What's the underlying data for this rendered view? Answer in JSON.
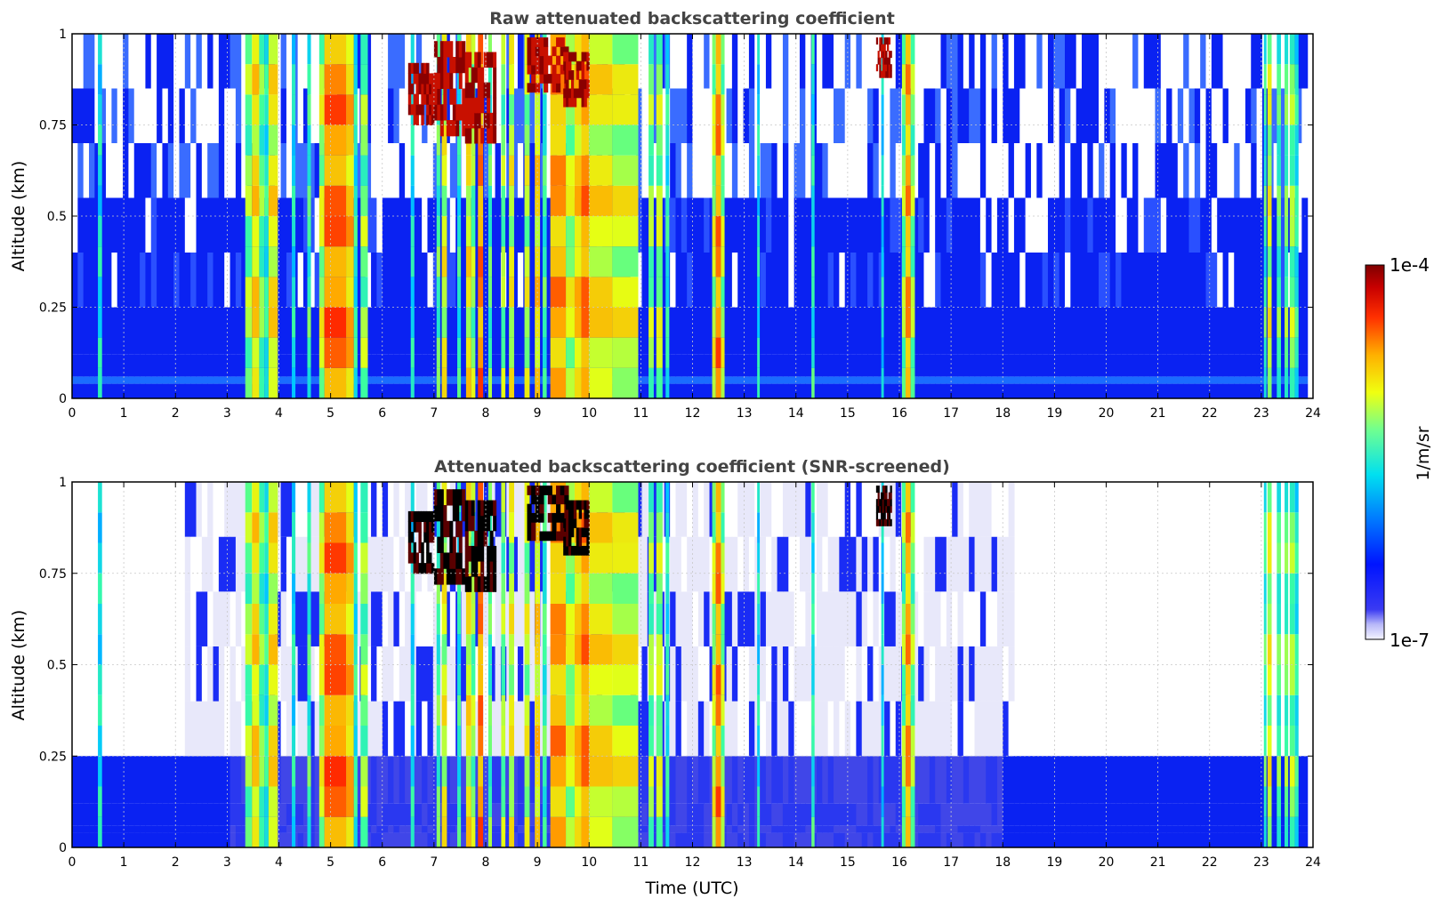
{
  "chart_data": [
    {
      "type": "heatmap",
      "title": "Raw attenuated backscattering coefficient",
      "xlabel": "",
      "ylabel": "Altitude (km)",
      "xlim": [
        0,
        24
      ],
      "ylim": [
        0,
        1
      ],
      "xticks": [
        "0",
        "1",
        "2",
        "3",
        "4",
        "5",
        "6",
        "7",
        "8",
        "9",
        "10",
        "11",
        "12",
        "13",
        "14",
        "15",
        "16",
        "17",
        "18",
        "19",
        "20",
        "21",
        "22",
        "23",
        "24"
      ],
      "yticks": [
        "0",
        "0.25",
        "0.5",
        "0.75",
        "1"
      ],
      "grid": true,
      "screened": false
    },
    {
      "type": "heatmap",
      "title": "Attenuated backscattering coefficient (SNR-screened)",
      "xlabel": "Time (UTC)",
      "ylabel": "Altitude (km)",
      "xlim": [
        0,
        24
      ],
      "ylim": [
        0,
        1
      ],
      "xticks": [
        "0",
        "1",
        "2",
        "3",
        "4",
        "5",
        "6",
        "7",
        "8",
        "9",
        "10",
        "11",
        "12",
        "13",
        "14",
        "15",
        "16",
        "17",
        "18",
        "19",
        "20",
        "21",
        "22",
        "23",
        "24"
      ],
      "yticks": [
        "0",
        "0.25",
        "0.5",
        "0.75",
        "1"
      ],
      "grid": true,
      "screened": true
    }
  ],
  "colorbar": {
    "label": "1/m/sr",
    "max_label": "1e-4",
    "min_label": "1e-7",
    "scale": "log",
    "colormap": "jet"
  },
  "features": {
    "aerosol_layer_top_km": 0.25,
    "column_events": [
      {
        "t0": 0.5,
        "t1": 0.58,
        "level": 0.42
      },
      {
        "t0": 3.35,
        "t1": 3.48,
        "level": 0.55
      },
      {
        "t0": 3.48,
        "t1": 3.62,
        "level": 0.68
      },
      {
        "t0": 3.62,
        "t1": 3.72,
        "level": 0.52
      },
      {
        "t0": 3.72,
        "t1": 3.8,
        "level": 0.45
      },
      {
        "t0": 3.8,
        "t1": 3.98,
        "level": 0.66
      },
      {
        "t0": 4.25,
        "t1": 4.32,
        "level": 0.42
      },
      {
        "t0": 4.55,
        "t1": 4.62,
        "level": 0.48
      },
      {
        "t0": 4.78,
        "t1": 4.88,
        "level": 0.6
      },
      {
        "t0": 4.88,
        "t1": 5.3,
        "level": 0.8
      },
      {
        "t0": 5.3,
        "t1": 5.45,
        "level": 0.72
      },
      {
        "t0": 5.45,
        "t1": 5.52,
        "level": 0.45
      },
      {
        "t0": 5.58,
        "t1": 5.72,
        "level": 0.55
      },
      {
        "t0": 6.55,
        "t1": 6.62,
        "level": 0.42
      },
      {
        "t0": 7.05,
        "t1": 7.12,
        "level": 0.5
      },
      {
        "t0": 7.15,
        "t1": 7.25,
        "level": 0.62
      },
      {
        "t0": 7.45,
        "t1": 7.52,
        "level": 0.45
      },
      {
        "t0": 7.62,
        "t1": 7.72,
        "level": 0.65
      },
      {
        "t0": 7.72,
        "t1": 7.8,
        "level": 0.55
      },
      {
        "t0": 7.85,
        "t1": 7.95,
        "level": 0.78
      },
      {
        "t0": 8.05,
        "t1": 8.12,
        "level": 0.5
      },
      {
        "t0": 8.3,
        "t1": 8.38,
        "level": 0.55
      },
      {
        "t0": 8.45,
        "t1": 8.55,
        "level": 0.62
      },
      {
        "t0": 8.75,
        "t1": 8.85,
        "level": 0.6
      },
      {
        "t0": 8.95,
        "t1": 9.05,
        "level": 0.68
      },
      {
        "t0": 9.1,
        "t1": 9.18,
        "level": 0.48
      },
      {
        "t0": 9.25,
        "t1": 9.55,
        "level": 0.75
      },
      {
        "t0": 9.55,
        "t1": 9.72,
        "level": 0.6
      },
      {
        "t0": 9.72,
        "t1": 9.85,
        "level": 0.7
      },
      {
        "t0": 9.85,
        "t1": 10.0,
        "level": 0.78
      },
      {
        "t0": 10.0,
        "t1": 10.45,
        "level": 0.66
      },
      {
        "t0": 10.45,
        "t1": 10.95,
        "level": 0.62
      },
      {
        "t0": 11.15,
        "t1": 11.25,
        "level": 0.55
      },
      {
        "t0": 11.3,
        "t1": 11.42,
        "level": 0.58
      },
      {
        "t0": 11.48,
        "t1": 11.55,
        "level": 0.45
      },
      {
        "t0": 12.38,
        "t1": 12.45,
        "level": 0.6
      },
      {
        "t0": 12.45,
        "t1": 12.55,
        "level": 0.78
      },
      {
        "t0": 12.55,
        "t1": 12.62,
        "level": 0.58
      },
      {
        "t0": 13.25,
        "t1": 13.3,
        "level": 0.42
      },
      {
        "t0": 14.3,
        "t1": 14.36,
        "level": 0.45
      },
      {
        "t0": 15.65,
        "t1": 15.7,
        "level": 0.4
      },
      {
        "t0": 16.05,
        "t1": 16.12,
        "level": 0.55
      },
      {
        "t0": 16.12,
        "t1": 16.22,
        "level": 0.75
      },
      {
        "t0": 16.22,
        "t1": 16.3,
        "level": 0.55
      },
      {
        "t0": 23.05,
        "t1": 23.1,
        "level": 0.48
      },
      {
        "t0": 23.12,
        "t1": 23.2,
        "level": 0.62
      },
      {
        "t0": 23.3,
        "t1": 23.38,
        "level": 0.5
      },
      {
        "t0": 23.45,
        "t1": 23.52,
        "level": 0.52
      },
      {
        "t0": 23.55,
        "t1": 23.65,
        "level": 0.55
      },
      {
        "t0": 23.65,
        "t1": 23.72,
        "level": 0.45
      }
    ],
    "dense_cloud_patches": [
      {
        "t0": 6.5,
        "t1": 7.0,
        "z0": 0.75,
        "z1": 0.92
      },
      {
        "t0": 7.0,
        "t1": 7.6,
        "z0": 0.72,
        "z1": 0.98
      },
      {
        "t0": 7.6,
        "t1": 8.2,
        "z0": 0.7,
        "z1": 0.95
      },
      {
        "t0": 8.8,
        "t1": 9.6,
        "z0": 0.84,
        "z1": 0.99
      },
      {
        "t0": 9.5,
        "t1": 10.0,
        "z0": 0.8,
        "z1": 0.95
      },
      {
        "t0": 15.55,
        "t1": 15.85,
        "z0": 0.88,
        "z1": 0.99
      }
    ]
  }
}
